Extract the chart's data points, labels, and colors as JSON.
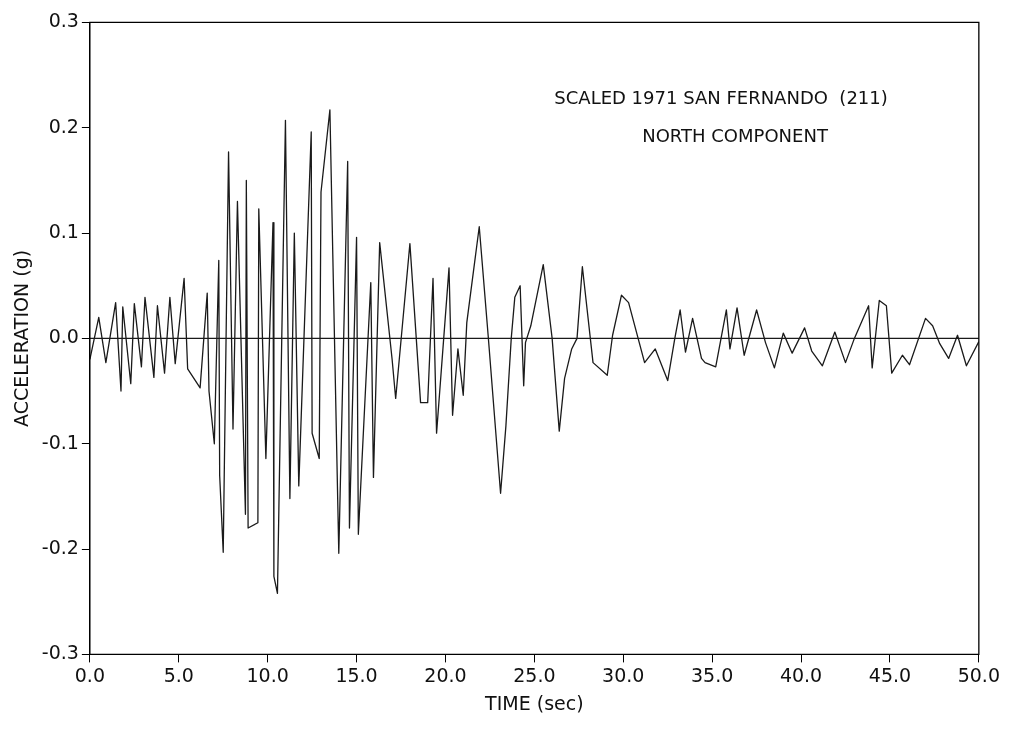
{
  "chart_data": {
    "type": "line",
    "xlabel": "TIME (sec)",
    "ylabel": "ACCELERATION (g)",
    "annotations": [
      "SCALED 1971 SAN FERNANDO  (211)",
      "NORTH COMPONENT"
    ],
    "xlim": [
      0,
      50
    ],
    "ylim": [
      -0.3,
      0.3
    ],
    "xticks": [
      {
        "value": 0,
        "label": "0.0"
      },
      {
        "value": 5,
        "label": "5.0"
      },
      {
        "value": 10,
        "label": "10.0"
      },
      {
        "value": 15,
        "label": "15.0"
      },
      {
        "value": 20,
        "label": "20.0"
      },
      {
        "value": 25,
        "label": "25.0"
      },
      {
        "value": 30,
        "label": "30.0"
      },
      {
        "value": 35,
        "label": "35.0"
      },
      {
        "value": 40,
        "label": "40.0"
      },
      {
        "value": 45,
        "label": "45.0"
      },
      {
        "value": 50,
        "label": "50.0"
      }
    ],
    "yticks": [
      {
        "value": -0.3,
        "label": "-0.3"
      },
      {
        "value": -0.2,
        "label": "-0.2"
      },
      {
        "value": -0.1,
        "label": "-0.1"
      },
      {
        "value": 0,
        "label": "0.0"
      },
      {
        "value": 0.1,
        "label": "0.1"
      },
      {
        "value": 0.2,
        "label": "0.2"
      },
      {
        "value": 0.3,
        "label": "0.3"
      }
    ],
    "grid": false,
    "marker": "none",
    "line_style": "solid",
    "ref_lines": [
      {
        "axis": "y",
        "value": 0,
        "color": "#1a1a1a"
      }
    ],
    "series": [
      {
        "color": "#1a1a1a",
        "x": [
          0,
          0.5,
          0.9,
          1.45,
          1.75,
          1.85,
          2.3,
          2.5,
          2.9,
          3.1,
          3.6,
          3.8,
          4.2,
          4.5,
          4.8,
          5.3,
          5.5,
          6.2,
          6.6,
          6.7,
          7.0,
          7.25,
          7.3,
          7.5,
          7.8,
          8.05,
          8.3,
          8.75,
          8.8,
          8.9,
          9.45,
          9.5,
          9.9,
          10.3,
          10.35,
          10.55,
          11.0,
          11.25,
          11.5,
          11.75,
          12.45,
          12.5,
          12.9,
          13.0,
          13.5,
          14.0,
          14.5,
          14.6,
          15.0,
          15.1,
          15.8,
          15.95,
          16.3,
          17.0,
          17.2,
          18.0,
          18.6,
          19.0,
          19.3,
          19.5,
          20.2,
          20.4,
          20.7,
          21.0,
          21.2,
          21.9,
          22.4,
          23.1,
          23.4,
          23.7,
          23.9,
          24.2,
          24.4,
          24.5,
          24.8,
          25.5,
          26.0,
          26.4,
          26.7,
          27.1,
          27.4,
          27.7,
          28.3,
          29.1,
          29.4,
          29.9,
          30.3,
          30.9,
          31.2,
          31.8,
          32.5,
          32.9,
          33.2,
          33.5,
          33.9,
          34.4,
          34.6,
          35.2,
          35.8,
          36.0,
          36.4,
          36.8,
          37.5,
          38.0,
          38.5,
          39.0,
          39.5,
          40.2,
          40.6,
          41.2,
          41.9,
          42.5,
          43.0,
          43.8,
          44.0,
          44.4,
          44.8,
          45.1,
          45.7,
          46.1,
          47.0,
          47.4,
          47.8,
          48.3,
          48.8,
          49.3,
          50.0
        ],
        "values": [
          -0.02,
          0.02,
          -0.023,
          0.034,
          -0.05,
          0.03,
          -0.043,
          0.033,
          -0.027,
          0.039,
          -0.037,
          0.031,
          -0.033,
          0.039,
          -0.024,
          0.057,
          -0.029,
          -0.047,
          0.043,
          -0.05,
          -0.1,
          0.074,
          -0.13,
          -0.203,
          0.177,
          -0.086,
          0.13,
          -0.167,
          0.15,
          -0.18,
          -0.175,
          0.123,
          -0.114,
          0.11,
          -0.226,
          -0.242,
          0.207,
          -0.152,
          0.1,
          -0.14,
          0.196,
          -0.09,
          -0.114,
          0.139,
          0.217,
          -0.204,
          0.168,
          -0.18,
          0.096,
          -0.186,
          0.053,
          -0.132,
          0.091,
          -0.02,
          -0.057,
          0.09,
          -0.061,
          -0.061,
          0.057,
          -0.09,
          0.067,
          -0.073,
          -0.01,
          -0.054,
          0.015,
          0.106,
          0.003,
          -0.147,
          -0.083,
          0,
          0.039,
          0.05,
          -0.045,
          -0.004,
          0.012,
          0.07,
          0,
          -0.088,
          -0.038,
          -0.01,
          0,
          0.068,
          -0.023,
          -0.035,
          0.003,
          0.041,
          0.034,
          -0.004,
          -0.023,
          -0.01,
          -0.04,
          0,
          0.027,
          -0.013,
          0.019,
          -0.019,
          -0.023,
          -0.027,
          0.027,
          -0.01,
          0.029,
          -0.016,
          0.027,
          -0.004,
          -0.028,
          0.005,
          -0.014,
          0.01,
          -0.012,
          -0.026,
          0.006,
          -0.023,
          0,
          0.031,
          -0.028,
          0.036,
          0.031,
          -0.033,
          -0.016,
          -0.025,
          0.019,
          0.012,
          -0.005,
          -0.019,
          0.003,
          -0.026,
          -0.003
        ]
      }
    ]
  }
}
